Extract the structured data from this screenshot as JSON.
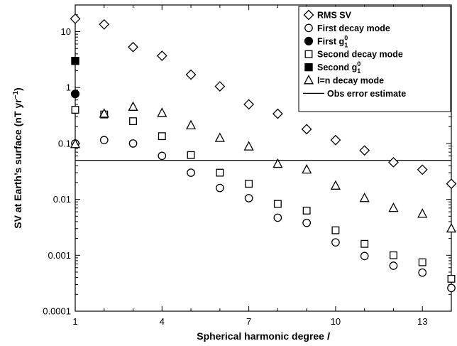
{
  "chart_data": {
    "type": "scatter",
    "xlabel_prefix": "Spherical harmonic degree ",
    "xlabel_var": "l",
    "ylabel": "SV at Earth’s surface (nT yr",
    "ylabel_sup": "−1",
    "ylabel_close": ")",
    "x_scale": "linear",
    "y_scale": "log",
    "xlim": [
      1,
      14
    ],
    "ylim": [
      0.0001,
      30
    ],
    "x_ticks": [
      1,
      4,
      7,
      10,
      13
    ],
    "x_tick_labels": [
      "1",
      "4",
      "7",
      "10",
      "13"
    ],
    "y_ticks": [
      0.0001,
      0.001,
      0.01,
      0.1,
      1,
      10
    ],
    "y_tick_labels": [
      "0.0001",
      "0.001",
      "0.01",
      "0.1",
      "1",
      "10"
    ],
    "grid": false,
    "legend_position": "top-right",
    "series": [
      {
        "name": "RMS SV",
        "marker": "diamond-open",
        "x": [
          1,
          2,
          3,
          4,
          5,
          6,
          7,
          8,
          9,
          10,
          11,
          12,
          13,
          14
        ],
        "y": [
          17,
          13.5,
          5.3,
          3.7,
          1.7,
          1.05,
          0.5,
          0.34,
          0.18,
          0.115,
          0.075,
          0.046,
          0.034,
          0.019
        ]
      },
      {
        "name": "First decay mode",
        "marker": "circle-open",
        "x": [
          1,
          2,
          3,
          4,
          5,
          6,
          7,
          8,
          9,
          10,
          11,
          12,
          13,
          14
        ],
        "y": [
          0.1,
          0.115,
          0.1,
          0.06,
          0.03,
          0.016,
          0.0105,
          0.0047,
          0.0038,
          0.0017,
          0.00097,
          0.00065,
          0.00049,
          0.00026
        ]
      },
      {
        "name_prefix": "First g",
        "name_sub": "1",
        "name_sup": "0",
        "marker": "circle-filled",
        "x": [
          1
        ],
        "y": [
          0.77
        ]
      },
      {
        "name": "Second decay mode",
        "marker": "square-open",
        "x": [
          1,
          2,
          3,
          4,
          5,
          6,
          7,
          8,
          9,
          10,
          11,
          12,
          13,
          14
        ],
        "y": [
          0.4,
          0.33,
          0.25,
          0.135,
          0.062,
          0.03,
          0.019,
          0.0083,
          0.0063,
          0.0028,
          0.0016,
          0.001,
          0.00075,
          0.00038
        ]
      },
      {
        "name_prefix": "Second g",
        "name_sub": "1",
        "name_sup": "0",
        "marker": "square-filled",
        "x": [
          1
        ],
        "y": [
          3.0
        ]
      },
      {
        "name": "l=n decay mode",
        "marker": "triangle-open",
        "x": [
          1,
          2,
          3,
          4,
          5,
          6,
          7,
          8,
          9,
          10,
          11,
          12,
          13,
          14
        ],
        "y": [
          0.097,
          0.34,
          0.45,
          0.35,
          0.21,
          0.125,
          0.088,
          0.043,
          0.034,
          0.0175,
          0.0105,
          0.007,
          0.0055,
          0.003
        ]
      },
      {
        "name": "Obs error estimate",
        "marker": "line",
        "x": [
          1,
          14
        ],
        "y": [
          0.05,
          0.05
        ]
      }
    ]
  },
  "colors": {
    "ink": "#000000",
    "background": "#ffffff"
  }
}
